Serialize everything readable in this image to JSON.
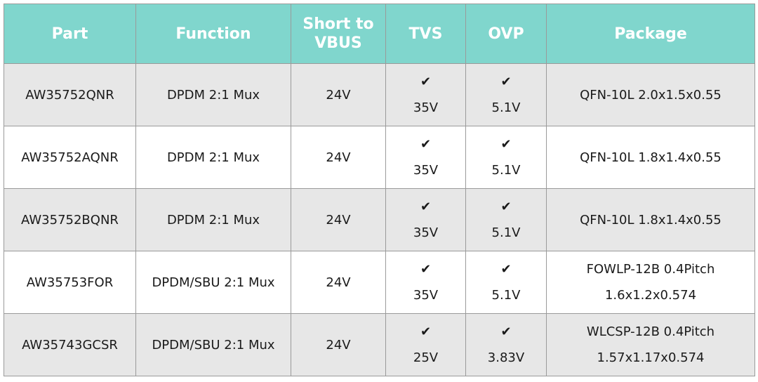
{
  "table": {
    "header": [
      "Part",
      "Function",
      "Short to VBUS",
      "TVS",
      "OVP",
      "Package"
    ],
    "rows": [
      [
        "AW35752QNR",
        "DPDM 2:1 Mux",
        "24V",
        [
          "✔",
          "35V"
        ],
        [
          "✔",
          "5.1V"
        ],
        [
          "QFN-10L 2.0x1.5x0.55"
        ]
      ],
      [
        "AW35752AQNR",
        "DPDM 2:1 Mux",
        "24V",
        [
          "✔",
          "35V"
        ],
        [
          "✔",
          "5.1V"
        ],
        [
          "QFN-10L 1.8x1.4x0.55"
        ]
      ],
      [
        "AW35752BQNR",
        "DPDM 2:1 Mux",
        "24V",
        [
          "✔",
          "35V"
        ],
        [
          "✔",
          "5.1V"
        ],
        [
          "QFN-10L 1.8x1.4x0.55"
        ]
      ],
      [
        "AW35753FOR",
        "DPDM/SBU 2:1 Mux",
        "24V",
        [
          "✔",
          "35V"
        ],
        [
          "✔",
          "5.1V"
        ],
        [
          "FOWLP-12B 0.4Pitch",
          "1.6x1.2x0.574"
        ]
      ],
      [
        "AW35743GCSR",
        "DPDM/SBU 2:1 Mux",
        "24V",
        [
          "✔",
          "25V"
        ],
        [
          "✔",
          "3.83V"
        ],
        [
          "WLCSP-12B 0.4Pitch",
          "1.57x1.17x0.574"
        ]
      ]
    ]
  }
}
